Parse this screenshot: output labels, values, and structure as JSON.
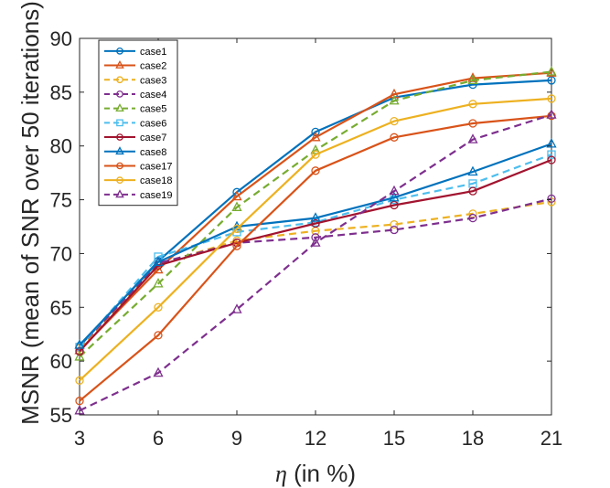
{
  "chart_data": {
    "type": "line",
    "title": "",
    "xlabel_italic": "η",
    "xlabel_rest": " (in %)",
    "ylabel": "MSNR (mean of SNR over 50 iterations)",
    "x": [
      3,
      6,
      9,
      12,
      15,
      18,
      21
    ],
    "xlim": [
      3,
      21
    ],
    "ylim": [
      55,
      90
    ],
    "xticks": [
      3,
      6,
      9,
      12,
      15,
      18,
      21
    ],
    "yticks": [
      55,
      60,
      65,
      70,
      75,
      80,
      85,
      90
    ],
    "grid": false,
    "legend_position": "top-left",
    "series": [
      {
        "name": "case1",
        "color": "#0072BD",
        "dash": "solid",
        "marker": "circle",
        "values": [
          61.4,
          69.3,
          75.7,
          81.3,
          84.5,
          85.7,
          86.1
        ]
      },
      {
        "name": "case2",
        "color": "#D95319",
        "dash": "solid",
        "marker": "triangle",
        "values": [
          61.0,
          68.5,
          75.3,
          80.8,
          84.8,
          86.3,
          86.8
        ]
      },
      {
        "name": "case3",
        "color": "#EDB120",
        "dash": "dashed",
        "marker": "circle",
        "values": [
          61.2,
          69.0,
          71.2,
          72.1,
          72.7,
          73.7,
          74.8
        ]
      },
      {
        "name": "case4",
        "color": "#7E2F8E",
        "dash": "dashed",
        "marker": "circle",
        "values": [
          61.3,
          69.1,
          71.0,
          71.5,
          72.2,
          73.3,
          75.1
        ]
      },
      {
        "name": "case5",
        "color": "#77AC30",
        "dash": "dashed",
        "marker": "triangle",
        "values": [
          60.4,
          67.2,
          74.3,
          79.6,
          84.2,
          86.1,
          86.9
        ]
      },
      {
        "name": "case6",
        "color": "#4DBEEE",
        "dash": "dashed",
        "marker": "square",
        "values": [
          61.3,
          69.7,
          72.0,
          72.9,
          75.0,
          76.5,
          79.2
        ]
      },
      {
        "name": "case7",
        "color": "#A2142F",
        "dash": "solid",
        "marker": "circle",
        "values": [
          60.9,
          68.9,
          71.0,
          72.8,
          74.5,
          75.8,
          78.7
        ]
      },
      {
        "name": "case8",
        "color": "#0072BD",
        "dash": "solid",
        "marker": "triangle",
        "values": [
          61.5,
          69.2,
          72.5,
          73.3,
          75.2,
          77.6,
          80.2
        ]
      },
      {
        "name": "case17",
        "color": "#D95319",
        "dash": "solid",
        "marker": "circle",
        "values": [
          56.3,
          62.4,
          70.7,
          77.7,
          80.8,
          82.1,
          82.8
        ]
      },
      {
        "name": "case18",
        "color": "#EDB120",
        "dash": "solid",
        "marker": "circle",
        "values": [
          58.2,
          65.0,
          72.3,
          79.2,
          82.3,
          83.9,
          84.4
        ]
      },
      {
        "name": "case19",
        "color": "#7E2F8E",
        "dash": "dashed",
        "marker": "triangle",
        "values": [
          55.4,
          58.9,
          64.8,
          71.0,
          75.8,
          80.6,
          82.9
        ]
      }
    ]
  }
}
